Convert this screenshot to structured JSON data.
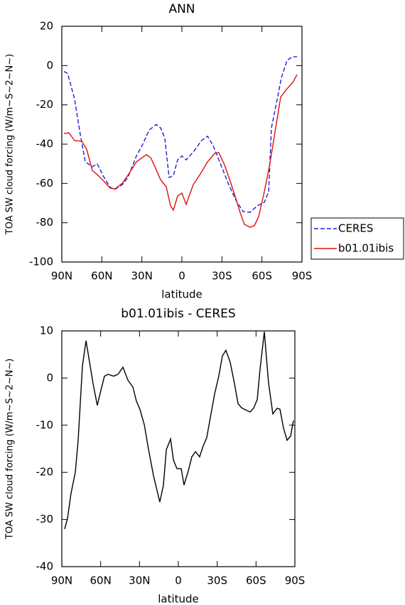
{
  "chart_data": [
    {
      "type": "line",
      "title": "ANN",
      "x_label": "latitude",
      "y_label": "TOA SW cloud forcing (W/m~S~2~N~)",
      "xlim": [
        90,
        -90
      ],
      "xticks": [
        {
          "value": 90,
          "label": "90N"
        },
        {
          "value": 60,
          "label": "60N"
        },
        {
          "value": 30,
          "label": "30N"
        },
        0,
        {
          "value": -30,
          "label": "30S"
        },
        {
          "value": -60,
          "label": "60S"
        },
        {
          "value": -90,
          "label": "90S"
        }
      ],
      "ylim": [
        -100,
        20
      ],
      "yticks": [
        -100,
        -80,
        -60,
        -40,
        -20,
        0,
        20
      ],
      "legend": "right",
      "series": [
        {
          "name": "CERES",
          "color": "#1f1fdc",
          "linestyle": "dashed",
          "x": [
            88.4,
            85.7,
            80.4,
            76.7,
            72.4,
            67.1,
            63.4,
            59.1,
            53.8,
            50.1,
            44.7,
            40.5,
            34.1,
            29.8,
            24.5,
            19.2,
            16.0,
            12.8,
            9.6,
            6.4,
            3.2,
            0,
            -3.2,
            -8.5,
            -14.9,
            -19.2,
            -23.4,
            -29.8,
            -35.1,
            -40.5,
            -45.8,
            -51.1,
            -56.4,
            -61.8,
            -65.0,
            -67.1,
            -71.4,
            -74.5,
            -78.8,
            -83.1,
            -86.3
          ],
          "values": [
            -3,
            -4,
            -17,
            -33,
            -49,
            -51.5,
            -50,
            -56,
            -62,
            -63,
            -60.6,
            -57,
            -46,
            -40.7,
            -32.8,
            -30,
            -31.7,
            -37,
            -57,
            -56,
            -48,
            -46,
            -48,
            -44,
            -38,
            -36,
            -40.7,
            -51.6,
            -60.6,
            -68.5,
            -74.3,
            -74.7,
            -71.4,
            -69.6,
            -64.2,
            -31.7,
            -17.2,
            -6.4,
            2.7,
            4.5,
            4.5
          ]
        },
        {
          "name": "b01.01ibis",
          "color": "#e01010",
          "linestyle": "solid",
          "x": [
            88.4,
            84.7,
            80.4,
            75.1,
            71.4,
            67.1,
            62.8,
            58.6,
            53.8,
            50.1,
            44.7,
            40.5,
            34.1,
            29.8,
            26.6,
            23.4,
            20.2,
            16.0,
            11.7,
            8.5,
            6.4,
            3.2,
            0,
            -3.2,
            -8.5,
            -13.8,
            -19.2,
            -24.5,
            -27.7,
            -31.9,
            -36.2,
            -40.5,
            -43.7,
            -46.8,
            -51.1,
            -54.3,
            -57.5,
            -61.8,
            -66.0,
            -70.3,
            -74.0,
            -78.3,
            -83.1,
            -86.3
          ],
          "values": [
            -34.6,
            -34.2,
            -38.2,
            -38.5,
            -42.5,
            -53.4,
            -55.9,
            -58.8,
            -62.4,
            -62.8,
            -59.9,
            -55.9,
            -49,
            -46.9,
            -45.4,
            -46.9,
            -51.6,
            -58.1,
            -61.7,
            -71.4,
            -73.6,
            -66.4,
            -64.9,
            -70.7,
            -60.6,
            -55.2,
            -49,
            -44.7,
            -44.3,
            -50.5,
            -58.8,
            -67.8,
            -75,
            -80.8,
            -82.3,
            -81.5,
            -76.9,
            -64.2,
            -49.8,
            -31.7,
            -16.1,
            -12.2,
            -8.6,
            -4.6
          ]
        }
      ]
    },
    {
      "type": "line",
      "title": "b01.01ibis - CERES",
      "x_label": "latitude",
      "y_label": "TOA SW cloud forcing (W/m~S~2~N~)",
      "xlim": [
        90,
        -90
      ],
      "xticks": [
        {
          "value": 90,
          "label": "90N"
        },
        {
          "value": 60,
          "label": "60N"
        },
        {
          "value": 30,
          "label": "30N"
        },
        0,
        {
          "value": -30,
          "label": "30S"
        },
        {
          "value": -60,
          "label": "60S"
        },
        {
          "value": -90,
          "label": "90S"
        }
      ],
      "ylim": [
        -40,
        10
      ],
      "yticks": [
        -40,
        -30,
        -20,
        -10,
        0,
        10
      ],
      "series": [
        {
          "color": "#000000",
          "linestyle": "solid",
          "x": [
            87.8,
            85.6,
            82.9,
            79.6,
            77.4,
            74.1,
            71.3,
            68.6,
            65.9,
            62.6,
            59.8,
            57.1,
            54.3,
            50.0,
            46.6,
            42.8,
            39.0,
            35.1,
            32.4,
            29.6,
            26.3,
            23.0,
            19.2,
            14.3,
            11.5,
            9.3,
            6.0,
            3.8,
            1.1,
            -2.2,
            -4.4,
            -7.7,
            -10.4,
            -13.2,
            -16.4,
            -19.2,
            -21.9,
            -24.7,
            -28.0,
            -31.2,
            -34.0,
            -36.7,
            -40.0,
            -43.3,
            -46.1,
            -48.8,
            -51.5,
            -55.4,
            -58.1,
            -60.9,
            -63.1,
            -66.4,
            -69.7,
            -73.0,
            -76.3,
            -78.5,
            -81.2,
            -84.0,
            -86.7,
            -88.9
          ],
          "values": [
            -32.0,
            -29.8,
            -24.5,
            -20,
            -13.2,
            2.6,
            7.9,
            3.4,
            -1.1,
            -5.8,
            -2.6,
            0.4,
            0.8,
            0.4,
            0.8,
            2.3,
            -0.4,
            -1.9,
            -4.9,
            -6.7,
            -9.9,
            -15.2,
            -20.7,
            -26.3,
            -22.7,
            -15.2,
            -12.9,
            -17.4,
            -19.2,
            -19.2,
            -22.7,
            -19.7,
            -16.7,
            -15.6,
            -16.7,
            -14.4,
            -12.7,
            -8.4,
            -3.4,
            0.4,
            4.7,
            5.9,
            3.4,
            -1.1,
            -5.4,
            -6.3,
            -6.7,
            -7.2,
            -6.4,
            -4.6,
            1.9,
            9.8,
            -1.1,
            -7.6,
            -6.4,
            -6.6,
            -10.6,
            -13.2,
            -12.3,
            -9.0
          ]
        }
      ]
    }
  ]
}
